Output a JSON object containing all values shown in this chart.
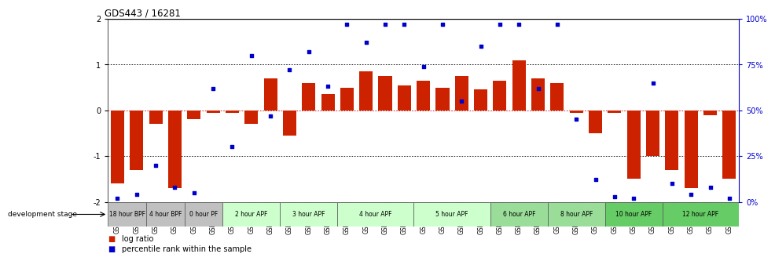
{
  "title": "GDS443 / 16281",
  "samples": [
    "GSM4585",
    "GSM4586",
    "GSM4587",
    "GSM4588",
    "GSM4589",
    "GSM4590",
    "GSM4591",
    "GSM4592",
    "GSM4593",
    "GSM4594",
    "GSM4595",
    "GSM4596",
    "GSM4597",
    "GSM4598",
    "GSM4599",
    "GSM4600",
    "GSM4601",
    "GSM4602",
    "GSM4603",
    "GSM4604",
    "GSM4605",
    "GSM4606",
    "GSM4607",
    "GSM4608",
    "GSM4609",
    "GSM4610",
    "GSM4611",
    "GSM4612",
    "GSM4613",
    "GSM4614",
    "GSM4615",
    "GSM4616",
    "GSM4617"
  ],
  "log_ratio": [
    -1.6,
    -1.3,
    -0.3,
    -1.7,
    -0.2,
    -0.05,
    -0.05,
    -0.3,
    0.7,
    -0.55,
    0.6,
    0.35,
    0.5,
    0.85,
    0.75,
    0.55,
    0.65,
    0.5,
    0.75,
    0.45,
    0.65,
    1.1,
    0.7,
    0.6,
    -0.05,
    -0.5,
    -0.05,
    -1.5,
    -1.0,
    -1.3,
    -1.7,
    -0.1,
    -1.5
  ],
  "percentile": [
    2,
    4,
    20,
    8,
    5,
    62,
    30,
    80,
    47,
    72,
    82,
    63,
    97,
    87,
    97,
    97,
    74,
    97,
    55,
    85,
    97,
    97,
    62,
    97,
    45,
    12,
    3,
    2,
    65,
    10,
    4,
    8,
    2
  ],
  "stages": [
    {
      "label": "18 hour BPF",
      "start": 0,
      "end": 2,
      "color": "#c0c0c0"
    },
    {
      "label": "4 hour BPF",
      "start": 2,
      "end": 4,
      "color": "#c0c0c0"
    },
    {
      "label": "0 hour PF",
      "start": 4,
      "end": 6,
      "color": "#c0c0c0"
    },
    {
      "label": "2 hour APF",
      "start": 6,
      "end": 9,
      "color": "#ccffcc"
    },
    {
      "label": "3 hour APF",
      "start": 9,
      "end": 12,
      "color": "#ccffcc"
    },
    {
      "label": "4 hour APF",
      "start": 12,
      "end": 16,
      "color": "#ccffcc"
    },
    {
      "label": "5 hour APF",
      "start": 16,
      "end": 20,
      "color": "#ccffcc"
    },
    {
      "label": "6 hour APF",
      "start": 20,
      "end": 23,
      "color": "#99dd99"
    },
    {
      "label": "8 hour APF",
      "start": 23,
      "end": 26,
      "color": "#99dd99"
    },
    {
      "label": "10 hour APF",
      "start": 26,
      "end": 29,
      "color": "#66cc66"
    },
    {
      "label": "12 hour APF",
      "start": 29,
      "end": 33,
      "color": "#66cc66"
    }
  ],
  "bar_color": "#cc2200",
  "dot_color": "#0000cc",
  "ylim": [
    -2,
    2
  ],
  "y2lim": [
    0,
    100
  ],
  "y_ticks": [
    -2,
    -1,
    0,
    1,
    2
  ],
  "y2_ticks": [
    0,
    25,
    50,
    75,
    100
  ],
  "y2_labels": [
    "0%",
    "25%",
    "50%",
    "75%",
    "100%"
  ]
}
